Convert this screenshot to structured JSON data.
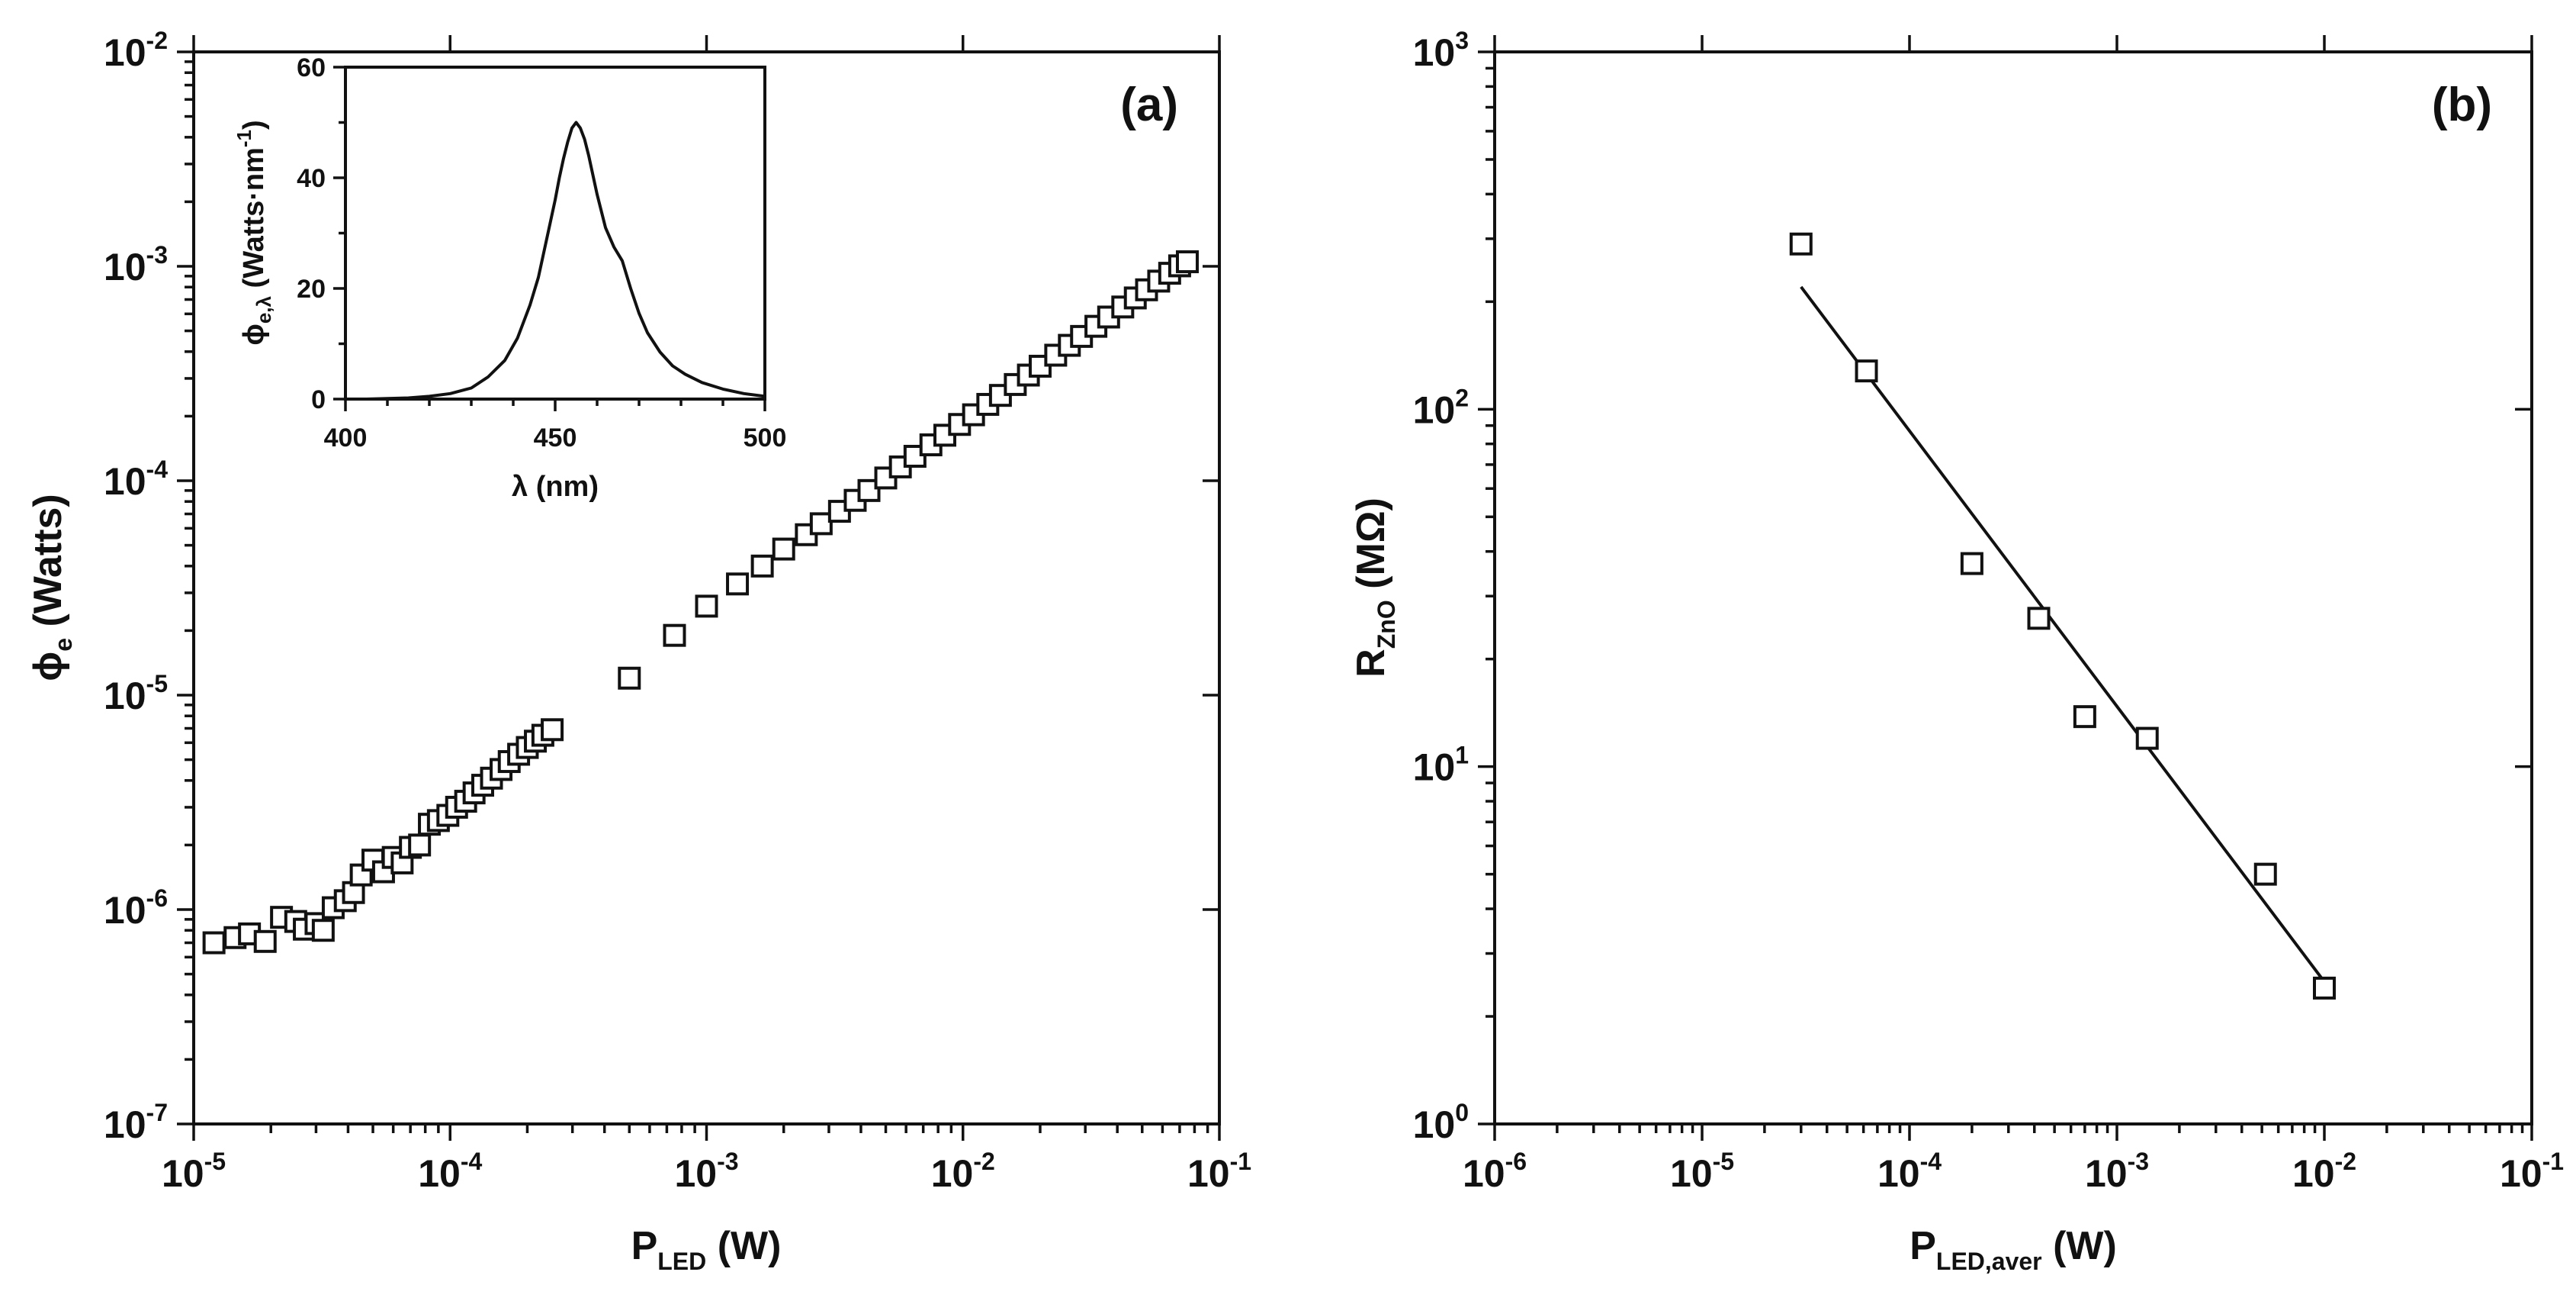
{
  "chart_data": [
    {
      "id": "a",
      "type": "scatter",
      "panel_label": "(a)",
      "xscale": "log",
      "yscale": "log",
      "xlim": [
        1e-05,
        0.1
      ],
      "ylim": [
        1e-07,
        0.01
      ],
      "xlabel": {
        "main": "P",
        "sub": "LED",
        "unit": " (W)"
      },
      "ylabel": {
        "main": "ϕ",
        "sub": "e",
        "unit": " (Watts)"
      },
      "xticks": [
        {
          "base": "10",
          "exp": "-5"
        },
        {
          "base": "10",
          "exp": "-4"
        },
        {
          "base": "10",
          "exp": "-3"
        },
        {
          "base": "10",
          "exp": "-2"
        },
        {
          "base": "10",
          "exp": "-1"
        }
      ],
      "yticks": [
        {
          "base": "10",
          "exp": "-7"
        },
        {
          "base": "10",
          "exp": "-6"
        },
        {
          "base": "10",
          "exp": "-5"
        },
        {
          "base": "10",
          "exp": "-4"
        },
        {
          "base": "10",
          "exp": "-3"
        },
        {
          "base": "10",
          "exp": "-2"
        }
      ],
      "series": [
        {
          "name": "phi_e",
          "x": [
            1.2e-05,
            1.45e-05,
            1.65e-05,
            1.9e-05,
            2.2e-05,
            2.5e-05,
            2.7e-05,
            3e-05,
            3.2e-05,
            3.5e-05,
            3.9e-05,
            4.2e-05,
            4.5e-05,
            5e-05,
            5.5e-05,
            6e-05,
            6.5e-05,
            7e-05,
            7.6e-05,
            8.3e-05,
            9e-05,
            9.8e-05,
            0.000106,
            0.000115,
            0.000124,
            0.000134,
            0.000145,
            0.000158,
            0.00017,
            0.000185,
            0.0002,
            0.000215,
            0.00023,
            0.00025,
            0.0005,
            0.00075,
            0.001,
            0.00132,
            0.00165,
            0.002,
            0.00245,
            0.0028,
            0.0033,
            0.0038,
            0.0043,
            0.005,
            0.0057,
            0.0065,
            0.0075,
            0.0085,
            0.0097,
            0.011,
            0.0125,
            0.014,
            0.016,
            0.018,
            0.02,
            0.023,
            0.026,
            0.029,
            0.033,
            0.037,
            0.042,
            0.047,
            0.052,
            0.058,
            0.064,
            0.07,
            0.075
          ],
          "y": [
            7e-07,
            7.4e-07,
            7.7e-07,
            7.1e-07,
            9.2e-07,
            8.8e-07,
            8.1e-07,
            8.6e-07,
            8e-07,
            1.02e-06,
            1.1e-06,
            1.2e-06,
            1.45e-06,
            1.7e-06,
            1.5e-06,
            1.75e-06,
            1.65e-06,
            1.95e-06,
            2e-06,
            2.5e-06,
            2.6e-06,
            2.75e-06,
            3e-06,
            3.2e-06,
            3.5e-06,
            3.8e-06,
            4.1e-06,
            4.5e-06,
            4.9e-06,
            5.3e-06,
            5.7e-06,
            6.1e-06,
            6.5e-06,
            6.9e-06,
            1.2e-05,
            1.9e-05,
            2.6e-05,
            3.3e-05,
            4e-05,
            4.8e-05,
            5.6e-05,
            6.3e-05,
            7.2e-05,
            8.1e-05,
            9e-05,
            0.000103,
            0.000116,
            0.00013,
            0.000147,
            0.000163,
            0.000183,
            0.000203,
            0.000227,
            0.00025,
            0.000281,
            0.000311,
            0.000342,
            0.000385,
            0.000428,
            0.000471,
            0.000525,
            0.00058,
            0.000646,
            0.000712,
            0.000777,
            0.000853,
            0.000928,
            0.001005,
            0.00105
          ]
        }
      ]
    },
    {
      "id": "a-inset",
      "type": "line",
      "xlim": [
        400,
        500
      ],
      "ylim": [
        0,
        60
      ],
      "xlabel": {
        "main": "λ (nm)"
      },
      "ylabel": {
        "main": "ϕ",
        "sub": "e,λ",
        "unit": " (Watts·nm",
        "sup": "-1",
        "close": ")"
      },
      "xticks": [
        "400",
        "450",
        "500"
      ],
      "yticks": [
        "0",
        "20",
        "40",
        "60"
      ],
      "series": [
        {
          "name": "spectrum",
          "x": [
            400,
            405,
            410,
            415,
            420,
            425,
            430,
            434,
            438,
            441,
            444,
            446,
            448,
            450,
            451,
            452,
            453,
            454,
            455,
            456,
            457,
            458,
            459,
            460,
            462,
            464,
            466,
            468,
            470,
            472,
            475,
            478,
            481,
            485,
            490,
            495,
            500
          ],
          "y": [
            0,
            0,
            0.1,
            0.2,
            0.5,
            1,
            2,
            4,
            7,
            11,
            17,
            22,
            29,
            36,
            40,
            43.5,
            46.5,
            49,
            50,
            49,
            47,
            44,
            40.5,
            37,
            31,
            27.5,
            25,
            20,
            15.5,
            12,
            8.5,
            6,
            4.5,
            3,
            1.8,
            1,
            0.5
          ]
        }
      ]
    },
    {
      "id": "b",
      "type": "scatter",
      "panel_label": "(b)",
      "xscale": "log",
      "yscale": "log",
      "xlim": [
        1e-06,
        0.1
      ],
      "ylim": [
        1,
        1000
      ],
      "xlabel": {
        "main": "P",
        "sub": "LED,aver",
        "unit": " (W)"
      },
      "ylabel": {
        "main": "R",
        "sub": "ZnO",
        "unit": " (MΩ)"
      },
      "xticks": [
        {
          "base": "10",
          "exp": "-6"
        },
        {
          "base": "10",
          "exp": "-5"
        },
        {
          "base": "10",
          "exp": "-4"
        },
        {
          "base": "10",
          "exp": "-3"
        },
        {
          "base": "10",
          "exp": "-2"
        },
        {
          "base": "10",
          "exp": "-1"
        }
      ],
      "yticks": [
        {
          "base": "10",
          "exp": "0"
        },
        {
          "base": "10",
          "exp": "1"
        },
        {
          "base": "10",
          "exp": "2"
        },
        {
          "base": "10",
          "exp": "3"
        }
      ],
      "series": [
        {
          "name": "R_ZnO",
          "x": [
            3e-05,
            6.2e-05,
            0.0002,
            0.00042,
            0.0007,
            0.0014,
            0.0052,
            0.01
          ],
          "y": [
            290,
            128,
            37,
            26,
            13.8,
            12,
            5,
            2.4
          ]
        }
      ],
      "fit": {
        "name": "linear-fit",
        "x": [
          3e-05,
          0.01
        ],
        "y": [
          220,
          2.5
        ]
      }
    }
  ]
}
